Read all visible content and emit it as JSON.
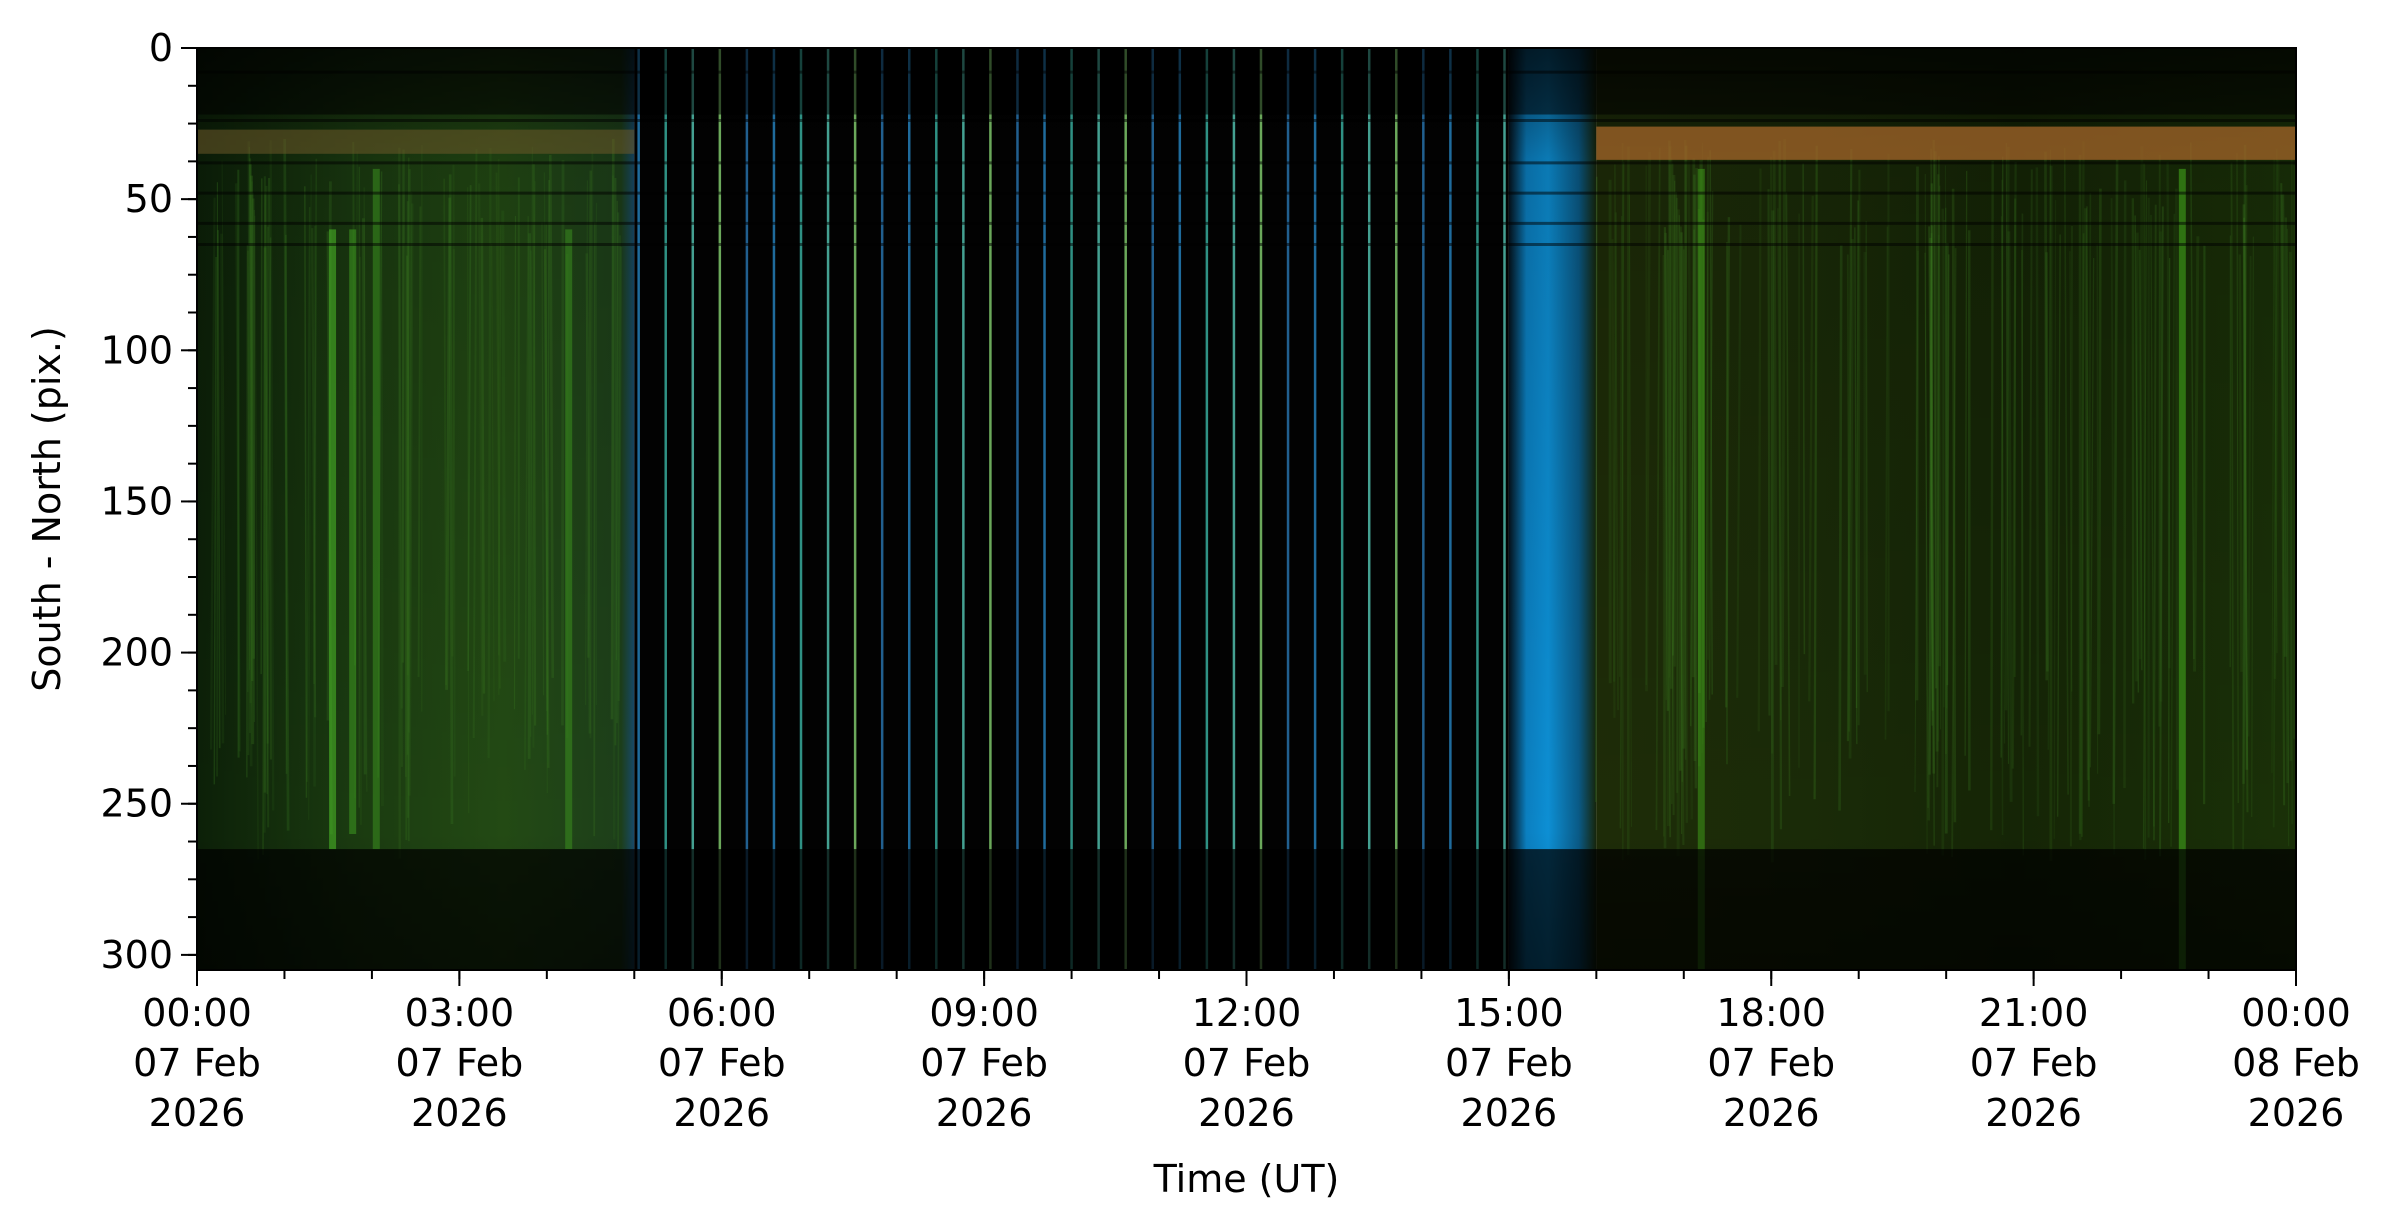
{
  "chart_data": {
    "type": "heatmap",
    "title": "",
    "xlabel": "Time (UT)",
    "ylabel": "South - North (pix.)",
    "xlim_hours": [
      0,
      24
    ],
    "ylim": [
      305,
      0
    ],
    "y_inverted": true,
    "grid": false,
    "legend": "none",
    "x_ticks": [
      {
        "hour": 0,
        "line1": "00:00",
        "line2": "07 Feb",
        "line3": "2026"
      },
      {
        "hour": 3,
        "line1": "03:00",
        "line2": "07 Feb",
        "line3": "2026"
      },
      {
        "hour": 6,
        "line1": "06:00",
        "line2": "07 Feb",
        "line3": "2026"
      },
      {
        "hour": 9,
        "line1": "09:00",
        "line2": "07 Feb",
        "line3": "2026"
      },
      {
        "hour": 12,
        "line1": "12:00",
        "line2": "07 Feb",
        "line3": "2026"
      },
      {
        "hour": 15,
        "line1": "15:00",
        "line2": "07 Feb",
        "line3": "2026"
      },
      {
        "hour": 18,
        "line1": "18:00",
        "line2": "07 Feb",
        "line3": "2026"
      },
      {
        "hour": 21,
        "line1": "21:00",
        "line2": "07 Feb",
        "line3": "2026"
      },
      {
        "hour": 24,
        "line1": "00:00",
        "line2": "08 Feb",
        "line3": "2026"
      }
    ],
    "x_minor_step_hours": 1,
    "y_ticks": [
      0,
      50,
      100,
      150,
      200,
      250,
      300
    ],
    "y_minor_step": 12.5,
    "colors": {
      "aurora_green": "#2f7a1c",
      "twilight_blue": "#0a86c8",
      "dark": "#050505",
      "auroral_orange": "#b5722e"
    },
    "regions": [
      {
        "t0": 0.0,
        "t1": 5.0,
        "kind": "aurora",
        "color": "#1c3f12"
      },
      {
        "t0": 5.0,
        "t1": 15.0,
        "kind": "daylight",
        "color": "#020202"
      },
      {
        "t0": 15.0,
        "t1": 16.0,
        "kind": "twilight",
        "color": "#0a6fa6"
      },
      {
        "t0": 16.0,
        "t1": 24.0,
        "kind": "aurora",
        "color": "#1f2f0a"
      }
    ],
    "bright_streaks": [
      {
        "t": 1.55,
        "y0": 60,
        "y1": 265,
        "color": "#4fc02a"
      },
      {
        "t": 1.78,
        "y0": 60,
        "y1": 260,
        "color": "#3e9a20"
      },
      {
        "t": 2.05,
        "y0": 40,
        "y1": 265,
        "color": "#3a8e1f"
      },
      {
        "t": 4.25,
        "y0": 60,
        "y1": 265,
        "color": "#3a8e1f"
      },
      {
        "t": 17.2,
        "y0": 40,
        "y1": 305,
        "color": "#3f9a1a"
      },
      {
        "t": 22.7,
        "y0": 40,
        "y1": 305,
        "color": "#45b01e"
      }
    ],
    "sample_lines": {
      "t_start": 5.05,
      "t_end": 14.95,
      "count": 33,
      "colors": [
        "#2a8fd0",
        "#3fc2b0",
        "#5bd6c2",
        "#8fe07a",
        "#2c7fbf"
      ]
    },
    "top_band": {
      "t0": 16.0,
      "t1": 24.0,
      "y0": 26,
      "y1": 37,
      "color": "#a4652a"
    }
  }
}
